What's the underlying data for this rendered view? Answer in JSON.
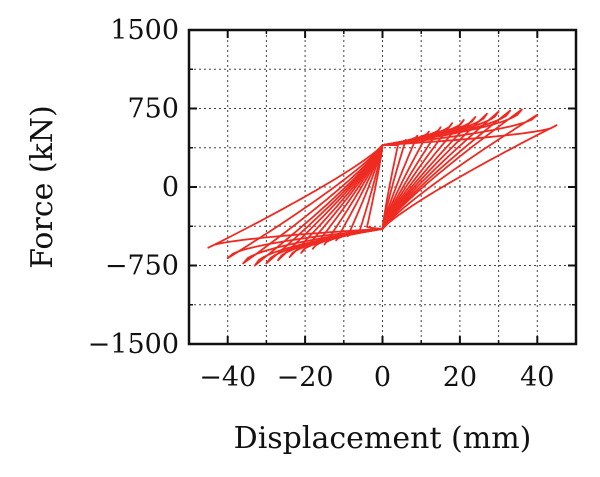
{
  "chart_data": {
    "type": "line",
    "title": "",
    "xlabel": "Displacement (mm)",
    "ylabel": "Force (kN)",
    "xlim": [
      -50,
      50
    ],
    "ylim": [
      -1500,
      1500
    ],
    "xticks": [
      -40,
      -20,
      0,
      20,
      40
    ],
    "yticks": [
      1500,
      750,
      0,
      -750,
      -1500
    ],
    "xtick_labels": [
      "−40",
      "−20",
      "0",
      "20",
      "40"
    ],
    "ytick_labels": [
      "1500",
      "750",
      "0",
      "−750",
      "−1500"
    ],
    "grid": true,
    "line_color": "#ee2b22",
    "series": [
      {
        "loops": [
          {
            "min": [
              -4,
              -380
            ],
            "max": [
              4,
              400
            ]
          },
          {
            "min": [
              -6,
              -430
            ],
            "max": [
              6,
              450
            ]
          },
          {
            "min": [
              -9,
              -470
            ],
            "max": [
              9,
              490
            ]
          },
          {
            "min": [
              -12,
              -510
            ],
            "max": [
              12,
              530
            ]
          },
          {
            "min": [
              -15,
              -550
            ],
            "max": [
              15,
              570
            ]
          },
          {
            "min": [
              -18,
              -590
            ],
            "max": [
              18,
              610
            ]
          },
          {
            "min": [
              -21,
              -630
            ],
            "max": [
              21,
              640
            ]
          },
          {
            "min": [
              -24,
              -670
            ],
            "max": [
              24,
              670
            ]
          },
          {
            "min": [
              -27,
              -700
            ],
            "max": [
              27,
              700
            ]
          },
          {
            "min": [
              -30,
              -730
            ],
            "max": [
              30,
              720
            ]
          },
          {
            "min": [
              -33,
              -750
            ],
            "max": [
              33,
              730
            ]
          },
          {
            "min": [
              -36,
              -730
            ],
            "max": [
              36,
              740
            ]
          },
          {
            "min": [
              -40,
              -680
            ],
            "max": [
              40,
              690
            ]
          },
          {
            "min": [
              -45,
              -580
            ],
            "max": [
              45,
              590
            ]
          }
        ]
      }
    ]
  }
}
